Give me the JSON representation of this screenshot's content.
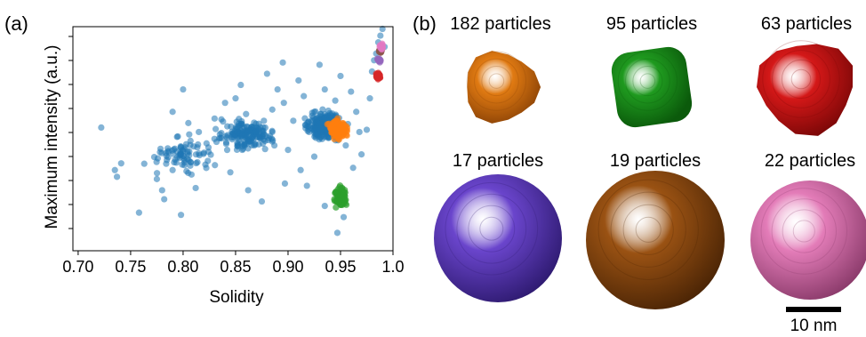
{
  "figure": {
    "panel_a_label": "(a)",
    "panel_b_label": "(b)"
  },
  "chart_data": {
    "type": "scatter",
    "xlabel": "Solidity",
    "ylabel": "Maximum intensity (a.u.)",
    "xlim": [
      0.695,
      1.0
    ],
    "ylim": [
      0.0,
      1.0
    ],
    "x_ticks": [
      "0.70",
      "0.75",
      "0.80",
      "0.85",
      "0.90",
      "0.95",
      "1.0"
    ],
    "x_tick_values": [
      0.7,
      0.75,
      0.8,
      0.85,
      0.9,
      0.95,
      1.0
    ],
    "y_tick_labels_shown": false,
    "grid": false,
    "series": [
      {
        "color": "#1f77b4",
        "count": 620,
        "points": [
          [
            0.722,
            0.55
          ],
          [
            0.735,
            0.36
          ],
          [
            0.741,
            0.39
          ],
          [
            0.737,
            0.33
          ],
          [
            0.758,
            0.17
          ],
          [
            0.775,
            0.32
          ],
          [
            0.778,
            0.44
          ],
          [
            0.78,
            0.27
          ],
          [
            0.782,
            0.23
          ],
          [
            0.79,
            0.36
          ],
          [
            0.795,
            0.51
          ],
          [
            0.798,
            0.16
          ],
          [
            0.805,
            0.57
          ],
          [
            0.808,
            0.34
          ],
          [
            0.812,
            0.28
          ],
          [
            0.815,
            0.53
          ],
          [
            0.79,
            0.62
          ],
          [
            0.8,
            0.72
          ],
          [
            0.83,
            0.59
          ],
          [
            0.835,
            0.52
          ],
          [
            0.84,
            0.66
          ],
          [
            0.842,
            0.45
          ],
          [
            0.845,
            0.35
          ],
          [
            0.85,
            0.68
          ],
          [
            0.855,
            0.74
          ],
          [
            0.86,
            0.61
          ],
          [
            0.862,
            0.27
          ],
          [
            0.865,
            0.5
          ],
          [
            0.87,
            0.55
          ],
          [
            0.875,
            0.22
          ],
          [
            0.88,
            0.79
          ],
          [
            0.885,
            0.63
          ],
          [
            0.89,
            0.72
          ],
          [
            0.895,
            0.84
          ],
          [
            0.896,
            0.66
          ],
          [
            0.9,
            0.45
          ],
          [
            0.905,
            0.58
          ],
          [
            0.91,
            0.76
          ],
          [
            0.915,
            0.69
          ],
          [
            0.918,
            0.29
          ],
          [
            0.92,
            0.53
          ],
          [
            0.925,
            0.62
          ],
          [
            0.93,
            0.83
          ],
          [
            0.935,
            0.72
          ],
          [
            0.94,
            0.59
          ],
          [
            0.945,
            0.67
          ],
          [
            0.95,
            0.78
          ],
          [
            0.955,
            0.47
          ],
          [
            0.96,
            0.71
          ],
          [
            0.962,
            0.37
          ],
          [
            0.965,
            0.62
          ],
          [
            0.968,
            0.53
          ],
          [
            0.97,
            0.43
          ],
          [
            0.975,
            0.54
          ],
          [
            0.978,
            0.68
          ],
          [
            0.98,
            0.8
          ],
          [
            0.982,
            0.85
          ],
          [
            0.984,
            0.88
          ],
          [
            0.986,
            0.93
          ],
          [
            0.988,
            0.96
          ],
          [
            0.99,
            0.99
          ],
          [
            0.992,
            0.91
          ],
          [
            0.953,
            0.15
          ],
          [
            0.947,
            0.08
          ],
          [
            0.935,
            0.2
          ],
          [
            0.925,
            0.42
          ],
          [
            0.912,
            0.36
          ],
          [
            0.897,
            0.3
          ],
          [
            0.887,
            0.47
          ],
          [
            0.877,
            0.58
          ]
        ]
      },
      {
        "color": "#ff7f0e",
        "count": 182,
        "x_range": [
          0.925,
          0.975
        ],
        "y_range": [
          0.41,
          0.66
        ],
        "center": [
          0.948,
          0.54
        ]
      },
      {
        "color": "#2ca02c",
        "count": 95,
        "x_range": [
          0.935,
          0.97
        ],
        "y_range": [
          0.06,
          0.35
        ],
        "center": [
          0.95,
          0.24
        ]
      },
      {
        "color": "#d62728",
        "count": 63,
        "x_range": [
          0.98,
          0.992
        ],
        "y_range": [
          0.74,
          0.83
        ],
        "center": [
          0.986,
          0.78
        ]
      },
      {
        "color": "#9467bd",
        "count": 17,
        "x_range": [
          0.982,
          0.992
        ],
        "y_range": [
          0.82,
          0.88
        ],
        "center": [
          0.987,
          0.85
        ]
      },
      {
        "color": "#8c564b",
        "count": 19,
        "x_range": [
          0.983,
          0.992
        ],
        "y_range": [
          0.86,
          0.92
        ],
        "center": [
          0.988,
          0.89
        ]
      },
      {
        "color": "#e377c2",
        "count": 22,
        "x_range": [
          0.984,
          0.993
        ],
        "y_range": [
          0.87,
          0.95
        ],
        "center": [
          0.989,
          0.91
        ]
      }
    ]
  },
  "particles": [
    {
      "id": "orange",
      "count_label": "182 particles",
      "color": "#e07a12",
      "shade": "#8a4206",
      "shape": "rough"
    },
    {
      "id": "green",
      "count_label": "95 particles",
      "color": "#1f9a1f",
      "shade": "#0b5a0b",
      "shape": "cube"
    },
    {
      "id": "red",
      "count_label": "63 particles",
      "color": "#d41818",
      "shade": "#7a0707",
      "shape": "rough"
    },
    {
      "id": "purple",
      "count_label": "17 particles",
      "color": "#6a45cc",
      "shade": "#2e1a70",
      "shape": "sphere"
    },
    {
      "id": "brown",
      "count_label": "19 particles",
      "color": "#9a5213",
      "shade": "#4a2405",
      "shape": "sphere"
    },
    {
      "id": "pink",
      "count_label": "22 particles",
      "color": "#e37cb8",
      "shade": "#8a3a6a",
      "shape": "sphere"
    }
  ],
  "scale_bar": {
    "label": "10 nm"
  }
}
